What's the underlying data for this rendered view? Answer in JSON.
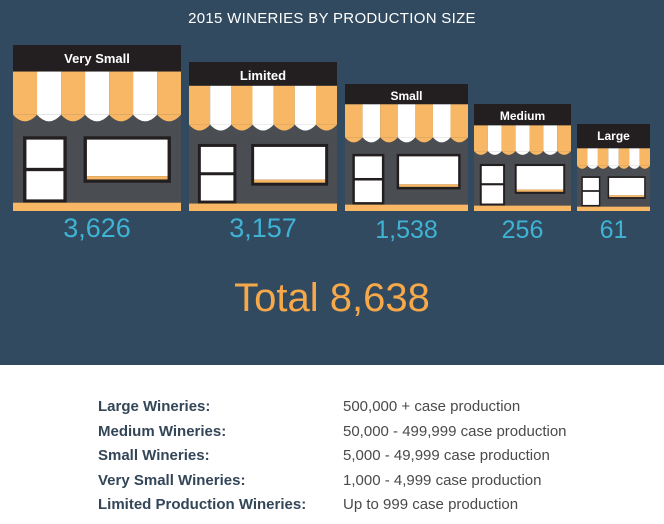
{
  "title": "2015 WINERIES BY PRODUCTION SIZE",
  "colors": {
    "background": "#324a60",
    "awning_orange": "#f8b765",
    "awning_white": "#ffffff",
    "sign": "#231f20",
    "storefront": "#4a4d52",
    "count": "#3eb3d4",
    "total": "#f7a94a"
  },
  "chart_data": {
    "type": "bar",
    "title": "2015 WINERIES BY PRODUCTION SIZE",
    "categories": [
      "Very Small",
      "Limited",
      "Small",
      "Medium",
      "Large"
    ],
    "values": [
      3626,
      3157,
      1538,
      256,
      61
    ]
  },
  "stores": [
    {
      "label": "Very Small",
      "count": "3,626"
    },
    {
      "label": "Limited",
      "count": "3,157"
    },
    {
      "label": "Small",
      "count": "1,538"
    },
    {
      "label": "Medium",
      "count": "256"
    },
    {
      "label": "Large",
      "count": "61"
    }
  ],
  "total": "Total 8,638",
  "legend": [
    {
      "name": "Large Wineries:",
      "desc": "500,000 + case production"
    },
    {
      "name": "Medium Wineries:",
      "desc": "50,000 - 499,999 case production"
    },
    {
      "name": "Small Wineries:",
      "desc": "5,000 - 49,999 case production"
    },
    {
      "name": "Very Small Wineries:",
      "desc": "1,000 - 4,999 case production"
    },
    {
      "name": "Limited Production Wineries:",
      "desc": "Up to 999 case production"
    }
  ]
}
